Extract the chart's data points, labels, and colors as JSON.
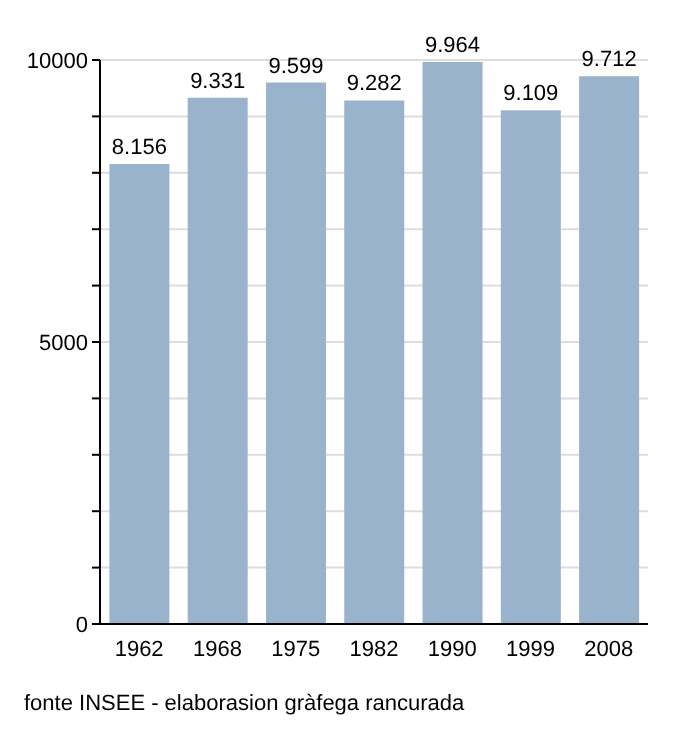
{
  "chart_data": {
    "type": "bar",
    "categories": [
      "1962",
      "1968",
      "1975",
      "1982",
      "1990",
      "1999",
      "2008"
    ],
    "values": [
      8156,
      9331,
      9599,
      9282,
      9964,
      9109,
      9712
    ],
    "value_labels": [
      "8.156",
      "9.331",
      "9.599",
      "9.282",
      "9.964",
      "9.109",
      "9.712"
    ],
    "color": "#99b3cc",
    "ylim": [
      0,
      10000
    ],
    "yticks": [
      0,
      {
        "value": 1000,
        "label": null
      },
      {
        "value": 2000,
        "label": null
      },
      {
        "value": 3000,
        "label": null
      },
      {
        "value": 4000,
        "label": null
      },
      5000,
      {
        "value": 6000,
        "label": null
      },
      {
        "value": 7000,
        "label": null
      },
      {
        "value": 8000,
        "label": null
      },
      {
        "value": 9000,
        "label": null
      },
      10000
    ],
    "grid": "y",
    "legend": false,
    "annotations": [
      "fonte INSEE - elaborasion gràfega rancurada"
    ]
  }
}
